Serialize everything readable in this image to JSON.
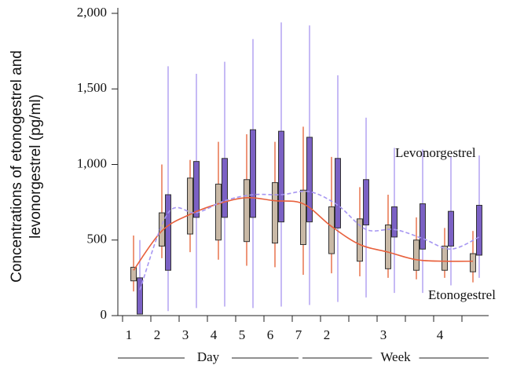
{
  "chart_data": {
    "type": "box",
    "y_label_lines": [
      "Concentrations of etonogestrel and",
      "levonorgestrel (pg/ml)"
    ],
    "categories": [
      "1",
      "2",
      "3",
      "4",
      "5",
      "6",
      "7",
      "2",
      null,
      "3",
      null,
      "4",
      null
    ],
    "x_group_labels": [
      "Day",
      "Week"
    ],
    "ylim": [
      0,
      2000
    ],
    "yticks": [
      0,
      500,
      {
        "value": 1000,
        "label": "1,000"
      },
      {
        "value": 1500,
        "label": "1,500"
      },
      {
        "value": 2000,
        "label": "2,000"
      }
    ],
    "series": [
      {
        "name": "Etonogestrel",
        "box_color": "#c9b9a6",
        "whisker_color": "#e8744e",
        "line_color": "#e8603c",
        "line_style": "solid",
        "low": [
          160,
          380,
          420,
          370,
          330,
          320,
          270,
          280,
          260,
          250,
          240,
          250,
          220
        ],
        "q1": [
          230,
          460,
          540,
          500,
          490,
          480,
          470,
          410,
          360,
          310,
          300,
          300,
          290
        ],
        "q3": [
          320,
          680,
          910,
          870,
          900,
          880,
          830,
          720,
          640,
          600,
          500,
          460,
          410
        ],
        "high": [
          530,
          1000,
          1030,
          1150,
          1200,
          1150,
          1250,
          1050,
          850,
          800,
          650,
          580,
          560
        ],
        "line": [
          300,
          560,
          670,
          740,
          780,
          760,
          740,
          590,
          470,
          420,
          370,
          360,
          360
        ]
      },
      {
        "name": "Levonorgestrel",
        "box_color": "#7b61c4",
        "whisker_color": "#b4a4f2",
        "line_color": "#a696f2",
        "line_style": "dashed",
        "low": [
          10,
          30,
          50,
          60,
          50,
          60,
          70,
          90,
          120,
          150,
          150,
          200,
          250
        ],
        "q1": [
          10,
          300,
          650,
          650,
          650,
          620,
          620,
          580,
          600,
          520,
          440,
          460,
          400
        ],
        "q3": [
          250,
          800,
          1020,
          1040,
          1230,
          1220,
          1180,
          1040,
          900,
          720,
          740,
          690,
          730
        ],
        "high": [
          500,
          1650,
          1600,
          1680,
          1830,
          1940,
          1920,
          1590,
          1310,
          1110,
          1100,
          1050,
          1060
        ],
        "line": [
          170,
          680,
          680,
          760,
          800,
          800,
          820,
          730,
          570,
          570,
          510,
          440,
          520
        ]
      }
    ]
  }
}
